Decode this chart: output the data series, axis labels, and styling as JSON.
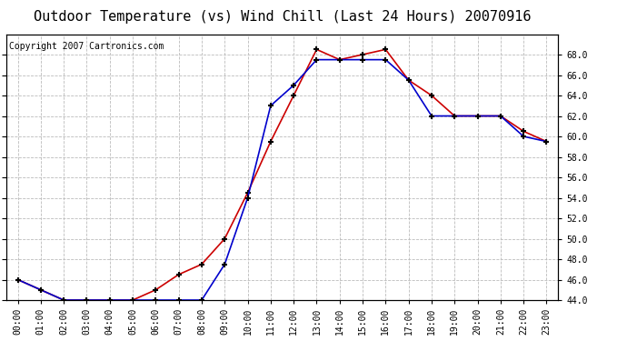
{
  "title": "Outdoor Temperature (vs) Wind Chill (Last 24 Hours) 20070916",
  "copyright": "Copyright 2007 Cartronics.com",
  "hours": [
    "00:00",
    "01:00",
    "02:00",
    "03:00",
    "04:00",
    "05:00",
    "06:00",
    "07:00",
    "08:00",
    "09:00",
    "10:00",
    "11:00",
    "12:00",
    "13:00",
    "14:00",
    "15:00",
    "16:00",
    "17:00",
    "18:00",
    "19:00",
    "20:00",
    "21:00",
    "22:00",
    "23:00"
  ],
  "temp": [
    46.0,
    45.0,
    44.0,
    44.0,
    44.0,
    44.0,
    45.0,
    46.5,
    47.5,
    50.0,
    54.5,
    59.5,
    64.0,
    68.5,
    67.5,
    68.0,
    68.5,
    65.5,
    64.0,
    62.0,
    62.0,
    62.0,
    60.5,
    59.5
  ],
  "windchill": [
    46.0,
    45.0,
    44.0,
    44.0,
    44.0,
    44.0,
    44.0,
    44.0,
    44.0,
    47.5,
    54.0,
    63.0,
    65.0,
    67.5,
    67.5,
    67.5,
    67.5,
    65.5,
    62.0,
    62.0,
    62.0,
    62.0,
    60.0,
    59.5
  ],
  "temp_color": "#cc0000",
  "windchill_color": "#0000cc",
  "ylim_min": 44.0,
  "ylim_max": 70.0,
  "ytick_min": 44.0,
  "ytick_max": 68.0,
  "ytick_step": 2.0,
  "bg_color": "#ffffff",
  "plot_bg_color": "#ffffff",
  "grid_color": "#bbbbbb",
  "title_fontsize": 11,
  "copyright_fontsize": 7,
  "tick_fontsize": 7,
  "marker": "+",
  "markersize": 5,
  "markeredgewidth": 1.5,
  "linewidth": 1.2
}
